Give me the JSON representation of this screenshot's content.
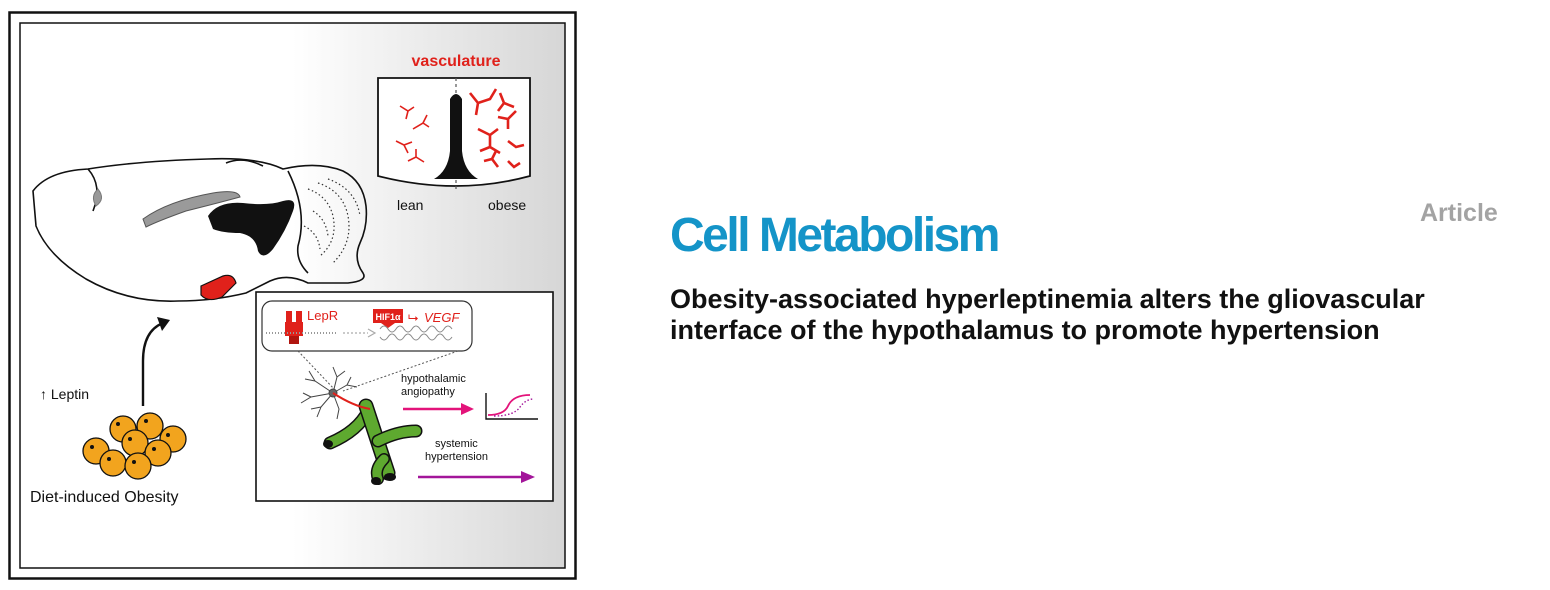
{
  "abstract": {
    "labels": {
      "vasculature": "vasculature",
      "lean": "lean",
      "obese": "obese",
      "lepr": "LepR",
      "hif1a": "HIF1α",
      "arrow": "⮡",
      "vegf": "VEGF",
      "hypothalamic": "hypothalamic",
      "angiopathy": "angiopathy",
      "systemic": "systemic",
      "hypertension": "hypertension",
      "leptin": "↑ Leptin",
      "diet_obesity": "Diet-induced Obesity"
    },
    "colors": {
      "red": "#e0211b",
      "magenta": "#e3137a",
      "purple": "#a3159a",
      "green": "#5ea92f",
      "adipocyte": "#f2a41e",
      "gray": "#9a9a9a"
    },
    "icons": [
      "mouse-brain-icon",
      "capillary-comparison-icon",
      "astrocyte-icon",
      "blood-vessel-icon",
      "adipocytes-icon",
      "sigmoid-curve-icon",
      "receptor-icon",
      "dna-icon"
    ]
  },
  "journal": "Cell Metabolism",
  "article_type": "Article",
  "title": "Obesity-associated hyperleptinemia alters the gliovascular interface of the hypothalamus to promote hypertension"
}
